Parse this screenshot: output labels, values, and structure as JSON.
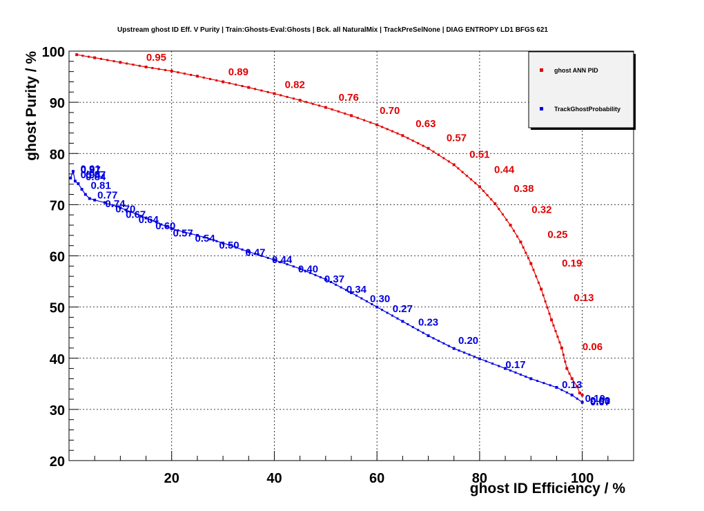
{
  "chart_data": {
    "type": "line",
    "title": "Upstream ghost ID Eff. V Purity | Train:Ghosts-Eval:Ghosts | Bck. all NaturalMix | TrackPreSelNone | DIAG ENTROPY LD1 BFGS 621",
    "xlabel": "ghost ID Efficiency / %",
    "ylabel": "ghost Purity / %",
    "xlim": [
      0,
      110
    ],
    "ylim": [
      20,
      100
    ],
    "xticks": [
      "20",
      "40",
      "60",
      "80",
      "100"
    ],
    "yticks": [
      "20",
      "30",
      "40",
      "50",
      "60",
      "70",
      "80",
      "90",
      "100"
    ],
    "grid": true,
    "legend_position": "top-right",
    "colors": {
      "red": "#e00000",
      "blue": "#0000e0"
    },
    "series": [
      {
        "name": "ghost ANN PID",
        "color": "#e00000",
        "x": [
          1.5,
          5,
          10,
          15,
          20,
          25,
          30,
          35,
          40,
          45,
          50,
          55,
          60,
          65,
          70,
          75,
          80,
          83,
          86,
          88,
          90,
          92,
          94,
          96,
          97,
          98,
          99,
          99.5,
          100
        ],
        "y": [
          99.3,
          98.7,
          97.8,
          96.9,
          96.1,
          95.1,
          94.0,
          92.9,
          91.7,
          90.4,
          89.0,
          87.4,
          85.6,
          83.5,
          81.0,
          77.8,
          73.5,
          70.2,
          66.0,
          62.7,
          58.5,
          53.5,
          47.5,
          42.0,
          38.0,
          36.0,
          34.5,
          33.2,
          32.8
        ],
        "labels": [
          {
            "text": "0.95",
            "x": 17,
            "y": 98.9
          },
          {
            "text": "0.89",
            "x": 33,
            "y": 96.1
          },
          {
            "text": "0.82",
            "x": 44,
            "y": 93.6
          },
          {
            "text": "0.76",
            "x": 54.5,
            "y": 91.1
          },
          {
            "text": "0.70",
            "x": 62.5,
            "y": 88.5
          },
          {
            "text": "0.63",
            "x": 69.5,
            "y": 86.0
          },
          {
            "text": "0.57",
            "x": 75.5,
            "y": 83.2
          },
          {
            "text": "0.51",
            "x": 80,
            "y": 80.0
          },
          {
            "text": "0.44",
            "x": 84.8,
            "y": 77.0
          },
          {
            "text": "0.38",
            "x": 88.6,
            "y": 73.3
          },
          {
            "text": "0.32",
            "x": 92.1,
            "y": 69.2
          },
          {
            "text": "0.25",
            "x": 95.2,
            "y": 64.3
          },
          {
            "text": "0.19",
            "x": 98,
            "y": 58.7
          },
          {
            "text": "0.13",
            "x": 100.3,
            "y": 52.0
          },
          {
            "text": "0.06",
            "x": 102,
            "y": 42.4
          }
        ]
      },
      {
        "name": "TrackGhostProbability",
        "color": "#0000e0",
        "x": [
          0.3,
          0.8,
          1.2,
          1.8,
          2.5,
          3.2,
          4.0,
          5.0,
          7.0,
          10,
          15,
          20,
          25,
          30,
          35,
          40,
          45,
          50,
          55,
          60,
          65,
          70,
          75,
          80,
          85,
          90,
          95,
          98,
          100
        ],
        "y": [
          75.2,
          76.5,
          74.6,
          74.1,
          73.0,
          72.0,
          71.2,
          70.9,
          70.4,
          69.4,
          67.4,
          65.3,
          64.0,
          62.5,
          60.8,
          59.2,
          57.5,
          55.4,
          52.8,
          50.0,
          47.2,
          44.4,
          41.9,
          39.9,
          38.0,
          36.0,
          34.3,
          32.8,
          31.4
        ]
      }
    ],
    "blue_labels": [
      {
        "text": "0.97",
        "x": 4.2,
        "y": 76.9
      },
      {
        "text": "0.94",
        "x": 4.2,
        "y": 76.0
      },
      {
        "text": "0.91",
        "x": 4.2,
        "y": 77.1
      },
      {
        "text": "0.87",
        "x": 5.2,
        "y": 76.0
      },
      {
        "text": "0.84",
        "x": 5.2,
        "y": 75.6
      },
      {
        "text": "0.81",
        "x": 6.2,
        "y": 73.9
      },
      {
        "text": "0.77",
        "x": 7.5,
        "y": 72.0
      },
      {
        "text": "0.74",
        "x": 9,
        "y": 70.3
      },
      {
        "text": "0.70",
        "x": 11,
        "y": 69.3
      },
      {
        "text": "0.67",
        "x": 13,
        "y": 68.2
      },
      {
        "text": "0.64",
        "x": 15.5,
        "y": 67.2
      },
      {
        "text": "0.60",
        "x": 18.8,
        "y": 66.0
      },
      {
        "text": "0.57",
        "x": 22.2,
        "y": 64.6
      },
      {
        "text": "0.54",
        "x": 26.5,
        "y": 63.6
      },
      {
        "text": "0.50",
        "x": 31.2,
        "y": 62.2
      },
      {
        "text": "0.47",
        "x": 36.3,
        "y": 60.8
      },
      {
        "text": "0.44",
        "x": 41.5,
        "y": 59.4
      },
      {
        "text": "0.40",
        "x": 46.6,
        "y": 57.6
      },
      {
        "text": "0.37",
        "x": 51.7,
        "y": 55.6
      },
      {
        "text": "0.34",
        "x": 56,
        "y": 53.6
      },
      {
        "text": "0.30",
        "x": 60.6,
        "y": 51.8
      },
      {
        "text": "0.27",
        "x": 65,
        "y": 49.8
      },
      {
        "text": "0.23",
        "x": 70,
        "y": 47.2
      },
      {
        "text": "0.20",
        "x": 77.8,
        "y": 43.6
      },
      {
        "text": "0.17",
        "x": 87,
        "y": 38.9
      },
      {
        "text": "0.13",
        "x": 98,
        "y": 35.0
      },
      {
        "text": "0.10",
        "x": 102.5,
        "y": 32.3
      },
      {
        "text": "0.07",
        "x": 103.5,
        "y": 31.6
      },
      {
        "text": "0.03",
        "x": 103.5,
        "y": 31.8
      },
      {
        "text": "0.00",
        "x": 103.5,
        "y": 31.9
      }
    ]
  }
}
